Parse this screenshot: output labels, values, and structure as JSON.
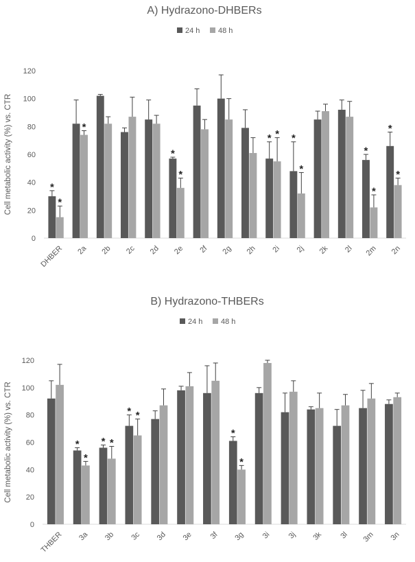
{
  "colors": {
    "series_24h": "#595959",
    "series_48h": "#a6a6a6",
    "axis": "#d9d9d9",
    "text": "#595959",
    "error": "#404040"
  },
  "chart_data": [
    {
      "type": "bar",
      "title": "A) Hydrazono-DHBERs",
      "ylabel": "Cell metabolic activity (%) vs. CTR",
      "xlabel": "",
      "ylim": [
        0,
        120
      ],
      "yticks": [
        "0",
        "20",
        "40",
        "60",
        "80",
        "100",
        "120"
      ],
      "grid": false,
      "legend": "top",
      "categories": [
        "DHBER",
        "2a",
        "2b",
        "2c",
        "2d",
        "2e",
        "2f",
        "2g",
        "2h",
        "2i",
        "2j",
        "2k",
        "2l",
        "2m",
        "2n"
      ],
      "series": [
        {
          "name": "24 h",
          "color": "#595959",
          "values": [
            30,
            82,
            102,
            76,
            85,
            57,
            95,
            100,
            79,
            57,
            48,
            85,
            92,
            56,
            66
          ],
          "errors": [
            4,
            17,
            1,
            3,
            14,
            1,
            12,
            17,
            13,
            12,
            21,
            6,
            7,
            4,
            10
          ],
          "significant": [
            true,
            false,
            false,
            false,
            false,
            true,
            false,
            false,
            false,
            true,
            true,
            false,
            false,
            true,
            true
          ]
        },
        {
          "name": "48 h",
          "color": "#a6a6a6",
          "values": [
            15,
            74,
            82,
            87,
            82,
            36,
            78,
            85,
            61,
            55,
            32,
            91,
            87,
            22,
            38
          ],
          "errors": [
            8,
            3,
            5,
            14,
            6,
            7,
            7,
            15,
            11,
            17,
            15,
            5,
            11,
            9,
            5
          ],
          "significant": [
            true,
            true,
            false,
            false,
            false,
            true,
            false,
            false,
            false,
            true,
            true,
            false,
            false,
            true,
            true
          ]
        }
      ],
      "annotation": "*"
    },
    {
      "type": "bar",
      "title": "B) Hydrazono-THBERs",
      "ylabel": "Cell metabolic activity (%) vs. CTR",
      "xlabel": "",
      "ylim": [
        0,
        120
      ],
      "yticks": [
        "0",
        "20",
        "40",
        "60",
        "80",
        "100",
        "120"
      ],
      "grid": false,
      "legend": "top",
      "categories": [
        "THBER",
        "3a",
        "3b",
        "3c",
        "3d",
        "3e",
        "3f",
        "3g",
        "3i",
        "3j",
        "3k",
        "3l",
        "3m",
        "3n"
      ],
      "series": [
        {
          "name": "24 h",
          "color": "#595959",
          "values": [
            92,
            54,
            56,
            72,
            77,
            98,
            96,
            61,
            96,
            82,
            84,
            72,
            85,
            88
          ],
          "errors": [
            13,
            2,
            2,
            8,
            6,
            3,
            20,
            3,
            4,
            14,
            2,
            12,
            13,
            3
          ],
          "significant": [
            false,
            true,
            true,
            true,
            false,
            false,
            false,
            true,
            false,
            false,
            false,
            false,
            false,
            false
          ]
        },
        {
          "name": "48 h",
          "color": "#a6a6a6",
          "values": [
            102,
            43,
            48,
            65,
            87,
            101,
            105,
            40,
            118,
            97,
            85,
            87,
            92,
            93
          ],
          "errors": [
            15,
            3,
            9,
            12,
            12,
            10,
            13,
            3,
            2,
            8,
            11,
            8,
            11,
            3
          ],
          "significant": [
            false,
            true,
            true,
            true,
            false,
            false,
            false,
            true,
            false,
            false,
            false,
            false,
            false,
            false
          ]
        }
      ],
      "annotation": "*"
    }
  ]
}
